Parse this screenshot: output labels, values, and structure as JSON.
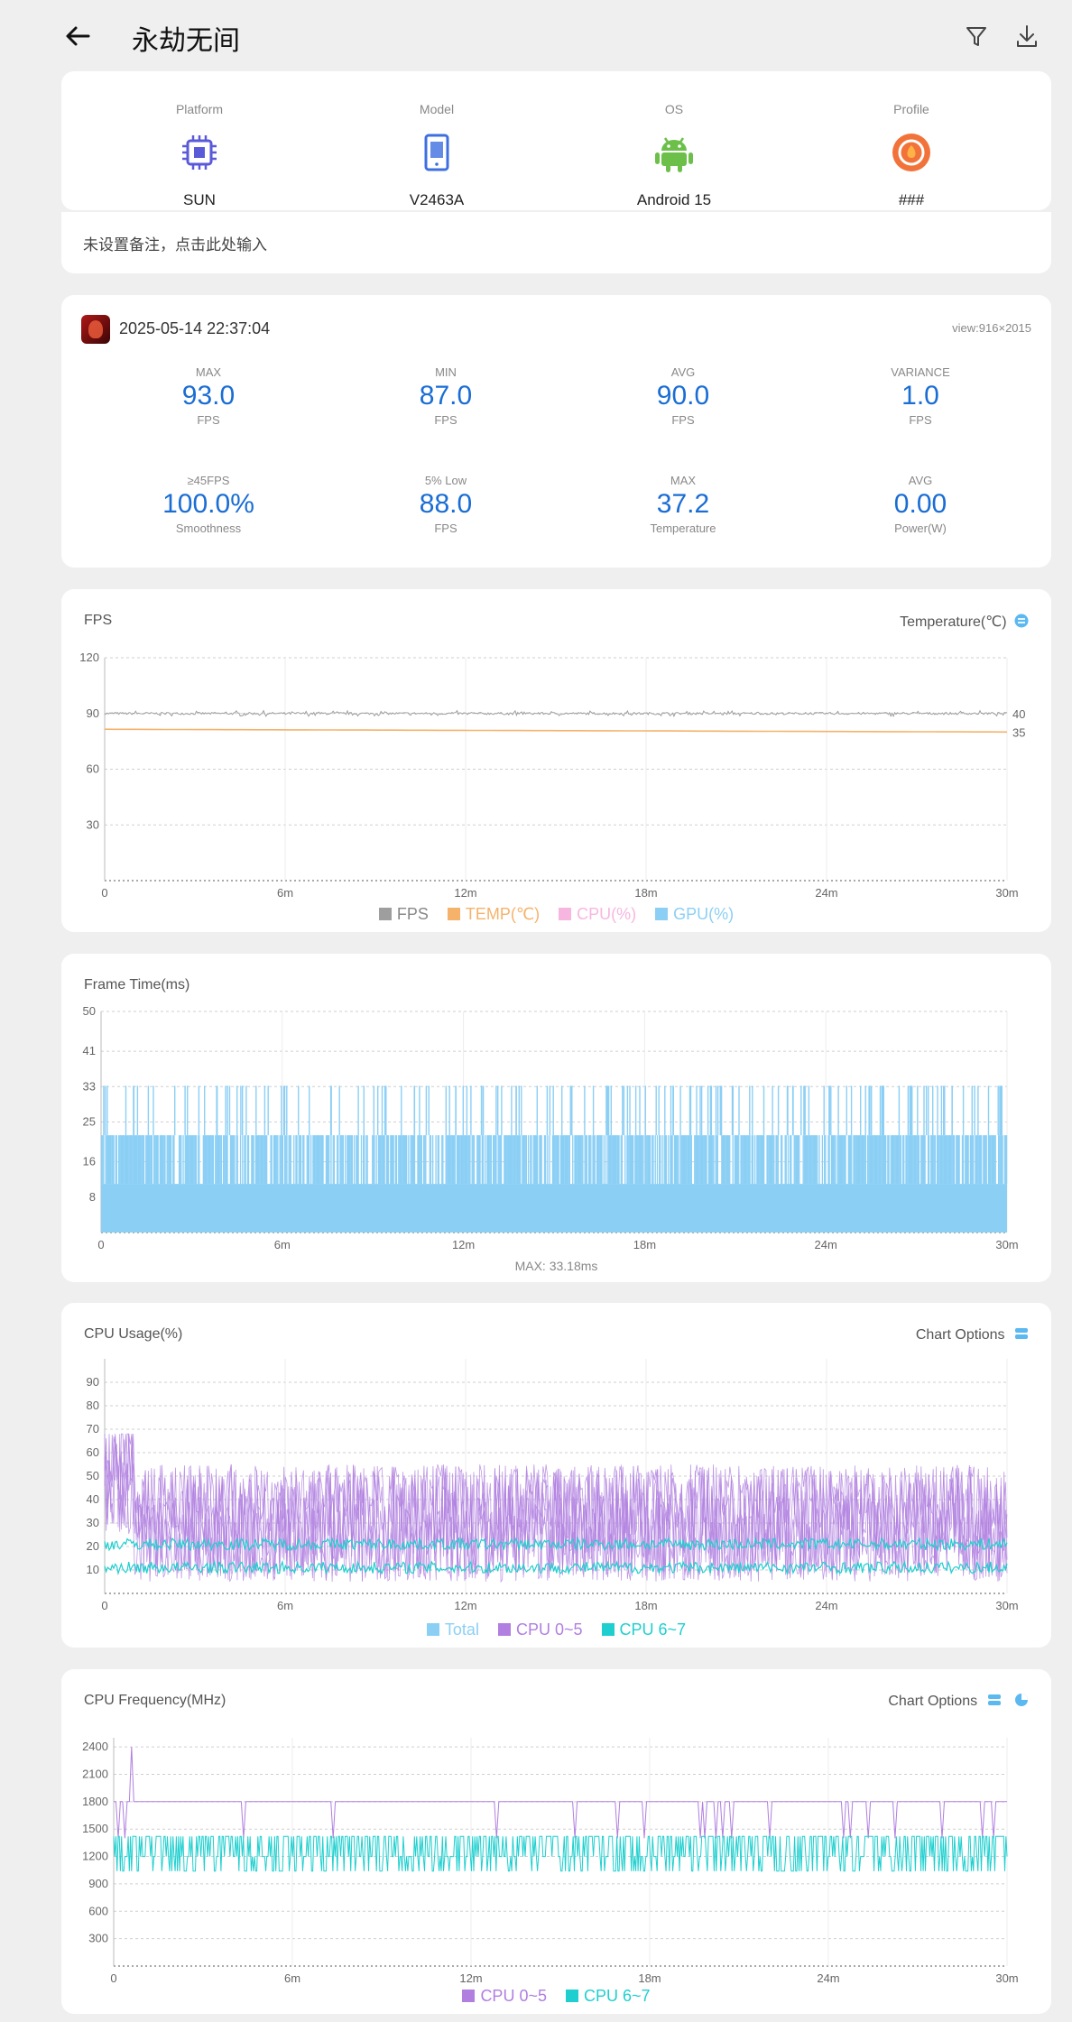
{
  "header": {
    "title": "永劫无间"
  },
  "device": [
    {
      "label": "Platform",
      "value": "SUN",
      "icon": "chip-icon"
    },
    {
      "label": "Model",
      "value": "V2463A",
      "icon": "phone-icon"
    },
    {
      "label": "OS",
      "value": "Android 15",
      "icon": "android-icon"
    },
    {
      "label": "Profile",
      "value": "###",
      "icon": "profile-icon"
    }
  ],
  "note": {
    "text": "未设置备注，点击此处输入"
  },
  "session": {
    "datetime": "2025-05-14 22:37:04",
    "view": "view:916×2015",
    "stats": [
      {
        "label": "MAX",
        "value": "93.0",
        "unit": "FPS"
      },
      {
        "label": "MIN",
        "value": "87.0",
        "unit": "FPS"
      },
      {
        "label": "AVG",
        "value": "90.0",
        "unit": "FPS"
      },
      {
        "label": "VARIANCE",
        "value": "1.0",
        "unit": "FPS"
      },
      {
        "label": "≥45FPS",
        "value": "100.0%",
        "unit": "Smoothness"
      },
      {
        "label": "5% Low",
        "value": "88.0",
        "unit": "FPS"
      },
      {
        "label": "MAX",
        "value": "37.2",
        "unit": "Temperature"
      },
      {
        "label": "AVG",
        "value": "0.00",
        "unit": "Power(W)"
      }
    ]
  },
  "colors": {
    "accent": "#1a6dd4",
    "fps": "#9e9e9e",
    "temp": "#f5b26b",
    "cpu_pct": "#f7b6e0",
    "gpu": "#8ccff5",
    "cpu05": "#b07fe0",
    "cpu67": "#1fcfcf",
    "total": "#8ccff5"
  },
  "chart_data": [
    {
      "type": "line",
      "title": "FPS",
      "right_label": "Temperature(℃)",
      "x_ticks": [
        "0",
        "6m",
        "12m",
        "18m",
        "24m",
        "30m"
      ],
      "y_ticks": [
        "120",
        "90",
        "60",
        "30"
      ],
      "ylim": [
        0,
        120
      ],
      "y2_ticks": [
        "40",
        "35"
      ],
      "series": [
        {
          "name": "FPS",
          "approx_value": 90
        },
        {
          "name": "TEMP(℃)",
          "approx_value": 37
        },
        {
          "name": "CPU(%)"
        },
        {
          "name": "GPU(%)"
        }
      ]
    },
    {
      "type": "bar",
      "title": "Frame Time(ms)",
      "x_ticks": [
        "0",
        "6m",
        "12m",
        "18m",
        "24m",
        "30m"
      ],
      "y_ticks": [
        "50",
        "41",
        "33",
        "25",
        "16",
        "8"
      ],
      "ylim": [
        0,
        50
      ],
      "annotation": "MAX: 33.18ms"
    },
    {
      "type": "line",
      "title": "CPU Usage(%)",
      "right_label": "Chart Options",
      "x_ticks": [
        "0",
        "6m",
        "12m",
        "18m",
        "24m",
        "30m"
      ],
      "y_ticks": [
        "90",
        "80",
        "70",
        "60",
        "50",
        "40",
        "30",
        "20",
        "10"
      ],
      "ylim": [
        0,
        100
      ],
      "series": [
        {
          "name": "Total"
        },
        {
          "name": "CPU 0~5"
        },
        {
          "name": "CPU 6~7"
        }
      ]
    },
    {
      "type": "line",
      "title": "CPU Frequency(MHz)",
      "right_label": "Chart Options",
      "x_ticks": [
        "0",
        "6m",
        "12m",
        "18m",
        "24m",
        "30m"
      ],
      "y_ticks": [
        "2400",
        "2100",
        "1800",
        "1500",
        "1200",
        "900",
        "600",
        "300"
      ],
      "ylim": [
        0,
        2500
      ],
      "series": [
        {
          "name": "CPU 0~5"
        },
        {
          "name": "CPU 6~7"
        }
      ]
    }
  ]
}
